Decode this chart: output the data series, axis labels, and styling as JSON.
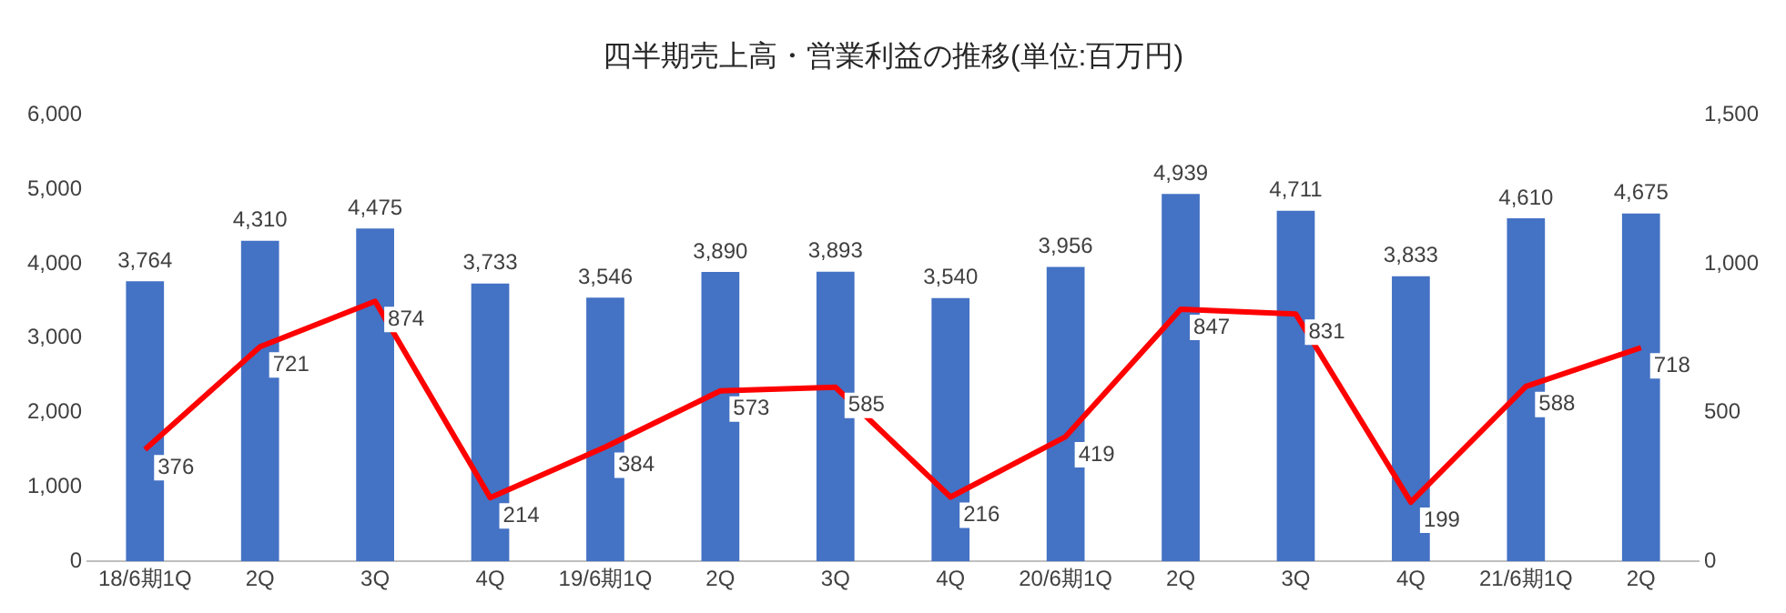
{
  "chart_data": {
    "type": "bar",
    "title": "四半期売上高・営業利益の推移(単位:百万円)",
    "categories": [
      "18/6期1Q",
      "2Q",
      "3Q",
      "4Q",
      "19/6期1Q",
      "2Q",
      "3Q",
      "4Q",
      "20/6期1Q",
      "2Q",
      "3Q",
      "4Q",
      "21/6期1Q",
      "2Q"
    ],
    "series": [
      {
        "color": "#4472c4",
        "values": [
          3764,
          4310,
          4475,
          3733,
          3546,
          3890,
          3893,
          3540,
          3956,
          4939,
          4711,
          3833,
          4610,
          4675
        ],
        "value_labels": [
          "3,764",
          "4,310",
          "4,475",
          "3,733",
          "3,546",
          "3,890",
          "3,893",
          "3,540",
          "3,956",
          "4,939",
          "4,711",
          "3,833",
          "4,610",
          "4,675"
        ]
      },
      {
        "type": "line",
        "axis": "y2",
        "color": "#ff0000",
        "values": [
          376,
          721,
          874,
          214,
          384,
          573,
          585,
          216,
          419,
          847,
          831,
          199,
          588,
          718
        ],
        "value_labels": [
          "376",
          "721",
          "874",
          "214",
          "384",
          "573",
          "585",
          "216",
          "419",
          "847",
          "831",
          "199",
          "588",
          "718"
        ]
      }
    ],
    "ylim": [
      0,
      6000
    ],
    "yticks": [
      0,
      {
        "value": 1000,
        "label": "1,000"
      },
      {
        "value": 2000,
        "label": "2,000"
      },
      {
        "value": 3000,
        "label": "3,000"
      },
      {
        "value": 4000,
        "label": "4,000"
      },
      {
        "value": 5000,
        "label": "5,000"
      },
      {
        "value": 6000,
        "label": "6,000"
      }
    ],
    "y2lim": [
      0,
      1500
    ],
    "y2ticks": [
      0,
      500,
      {
        "value": 1000,
        "label": "1,000"
      },
      {
        "value": 1500,
        "label": "1,500"
      }
    ],
    "grid": false,
    "legend": false,
    "marker": "none",
    "line_style": "solid"
  }
}
